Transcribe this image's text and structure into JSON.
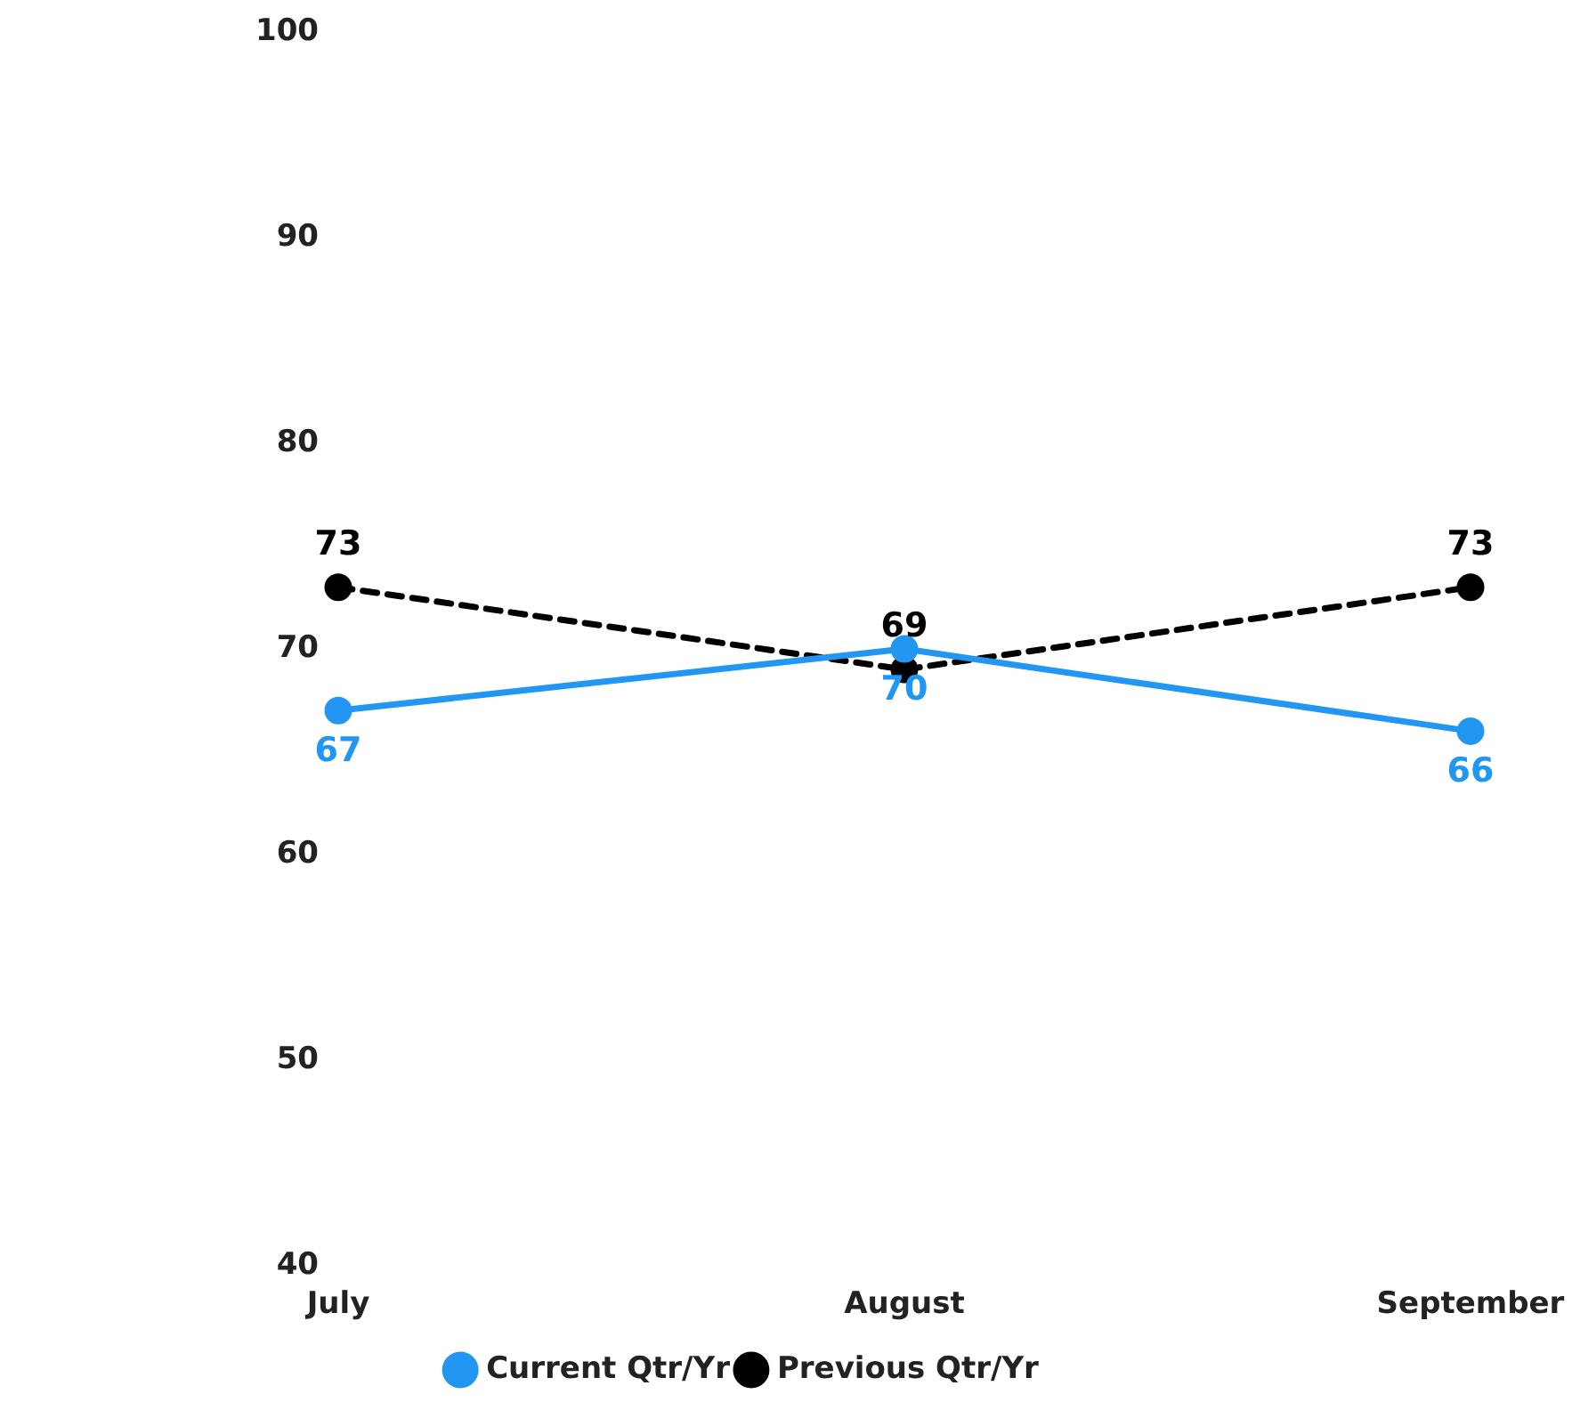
{
  "chart_data": {
    "type": "line",
    "categories": [
      "July",
      "August",
      "September"
    ],
    "series": [
      {
        "name": "Current Qtr/Yr",
        "color": "#2196f3",
        "values": [
          67,
          70,
          66
        ],
        "line_style": "solid"
      },
      {
        "name": "Previous Qtr/Yr",
        "color": "#000000",
        "values": [
          73,
          69,
          73
        ],
        "line_style": "dashed"
      }
    ],
    "ylim": [
      40,
      100
    ],
    "yticks": [
      40,
      50,
      60,
      70,
      80,
      90,
      100
    ],
    "grid": false,
    "legend": "bottom",
    "marker": "circle",
    "data_labels": true
  }
}
